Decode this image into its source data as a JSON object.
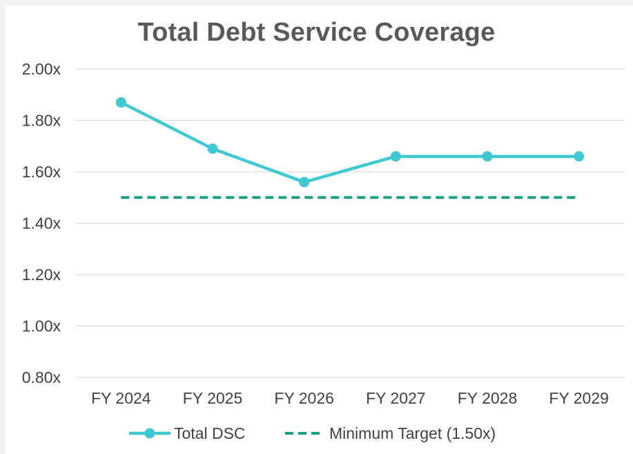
{
  "chart_data": {
    "type": "line",
    "title": "Total Debt Service Coverage",
    "categories": [
      "FY 2024",
      "FY 2025",
      "FY 2026",
      "FY 2027",
      "FY 2028",
      "FY 2029"
    ],
    "series": [
      {
        "name": "Total DSC",
        "values": [
          1.87,
          1.69,
          1.56,
          1.66,
          1.66,
          1.66
        ],
        "color": "#3ec9d3",
        "style": "solid",
        "markers": true
      },
      {
        "name": "Minimum Target (1.50x)",
        "values": [
          1.5,
          1.5,
          1.5,
          1.5,
          1.5,
          1.5
        ],
        "color": "#16a085",
        "style": "dashed",
        "markers": false
      }
    ],
    "y_ticks": [
      "0.80x",
      "1.00x",
      "1.20x",
      "1.40x",
      "1.60x",
      "1.80x",
      "2.00x"
    ],
    "ylim": [
      0.8,
      2.0
    ],
    "grid": true,
    "legend": "bottom"
  }
}
